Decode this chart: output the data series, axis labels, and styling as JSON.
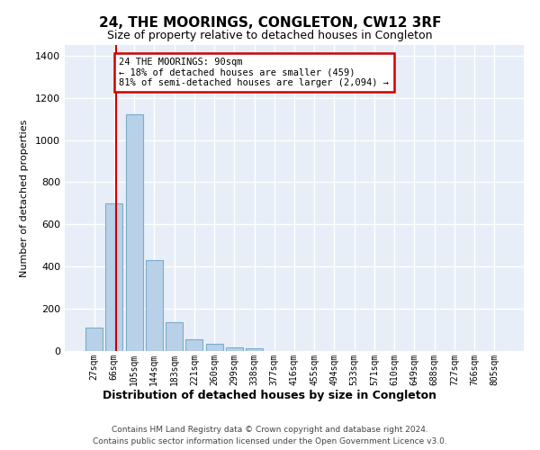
{
  "title": "24, THE MOORINGS, CONGLETON, CW12 3RF",
  "subtitle": "Size of property relative to detached houses in Congleton",
  "xlabel": "Distribution of detached houses by size in Congleton",
  "ylabel": "Number of detached properties",
  "bar_color": "#b8d0e8",
  "bar_edge_color": "#7aaccc",
  "background_color": "#e8eef8",
  "grid_color": "#ffffff",
  "annotation_box_color": "#cc0000",
  "vline_color": "#cc0000",
  "annotation_text": "24 THE MOORINGS: 90sqm\n← 18% of detached houses are smaller (459)\n81% of semi-detached houses are larger (2,094) →",
  "footnote1": "Contains HM Land Registry data © Crown copyright and database right 2024.",
  "footnote2": "Contains public sector information licensed under the Open Government Licence v3.0.",
  "bin_labels": [
    "27sqm",
    "66sqm",
    "105sqm",
    "144sqm",
    "183sqm",
    "221sqm",
    "260sqm",
    "299sqm",
    "338sqm",
    "377sqm",
    "416sqm",
    "455sqm",
    "494sqm",
    "533sqm",
    "571sqm",
    "610sqm",
    "649sqm",
    "688sqm",
    "727sqm",
    "766sqm",
    "805sqm"
  ],
  "bin_values": [
    110,
    700,
    1120,
    430,
    135,
    55,
    32,
    18,
    12,
    0,
    0,
    0,
    0,
    0,
    0,
    0,
    0,
    0,
    0,
    0,
    0
  ],
  "ylim": [
    0,
    1450
  ],
  "yticks": [
    0,
    200,
    400,
    600,
    800,
    1000,
    1200,
    1400
  ]
}
